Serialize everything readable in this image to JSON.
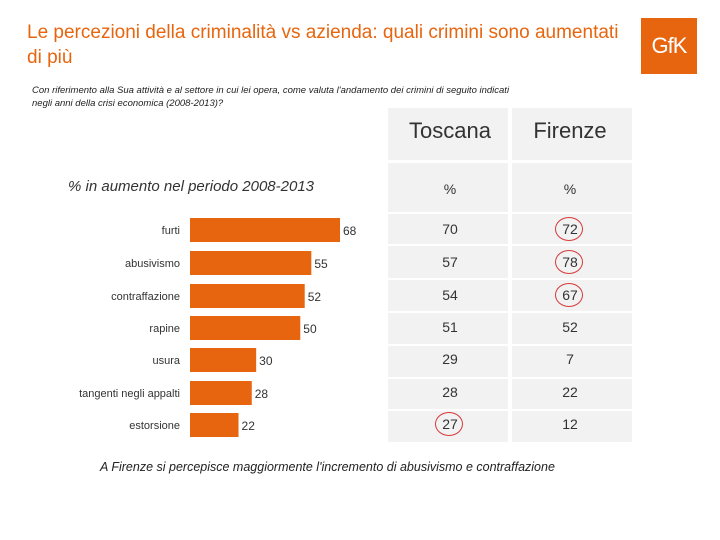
{
  "title": "Le percezioni della criminalità vs azienda: quali crimini sono aumentati di più",
  "logo_text": "GfK",
  "question": "Con riferimento alla Sua attività e al settore in cui lei opera, come valuta l'andamento dei crimini di seguito indicati negli anni della crisi economica (2008-2013)?",
  "footnote": "A Firenze si percepisce maggiormente l'incremento di abusivismo e contraffazione",
  "colors": {
    "accent": "#e8650f",
    "circle": "#d63a3a"
  },
  "table": {
    "headers": [
      "Toscana",
      "Firenze"
    ],
    "units": [
      "%",
      "%"
    ],
    "rows": [
      {
        "toscana": "70",
        "firenze": "72",
        "highlight": "firenze"
      },
      {
        "toscana": "57",
        "firenze": "78",
        "highlight": "firenze"
      },
      {
        "toscana": "54",
        "firenze": "67",
        "highlight": "firenze"
      },
      {
        "toscana": "51",
        "firenze": "52",
        "highlight": ""
      },
      {
        "toscana": "29",
        "firenze": "7",
        "highlight": ""
      },
      {
        "toscana": "28",
        "firenze": "22",
        "highlight": ""
      },
      {
        "toscana": "27",
        "firenze": "12",
        "highlight": "toscana"
      }
    ]
  },
  "chart_data": {
    "type": "bar",
    "orientation": "horizontal",
    "title": "% in aumento nel periodo 2008-2013",
    "categories": [
      "furti",
      "abusivismo",
      "contraffazione",
      "rapine",
      "usura",
      "tangenti negli appalti",
      "estorsione"
    ],
    "values": [
      68,
      55,
      52,
      50,
      30,
      28,
      22
    ],
    "xlim": [
      0,
      68
    ],
    "xlabel": "",
    "ylabel": ""
  }
}
